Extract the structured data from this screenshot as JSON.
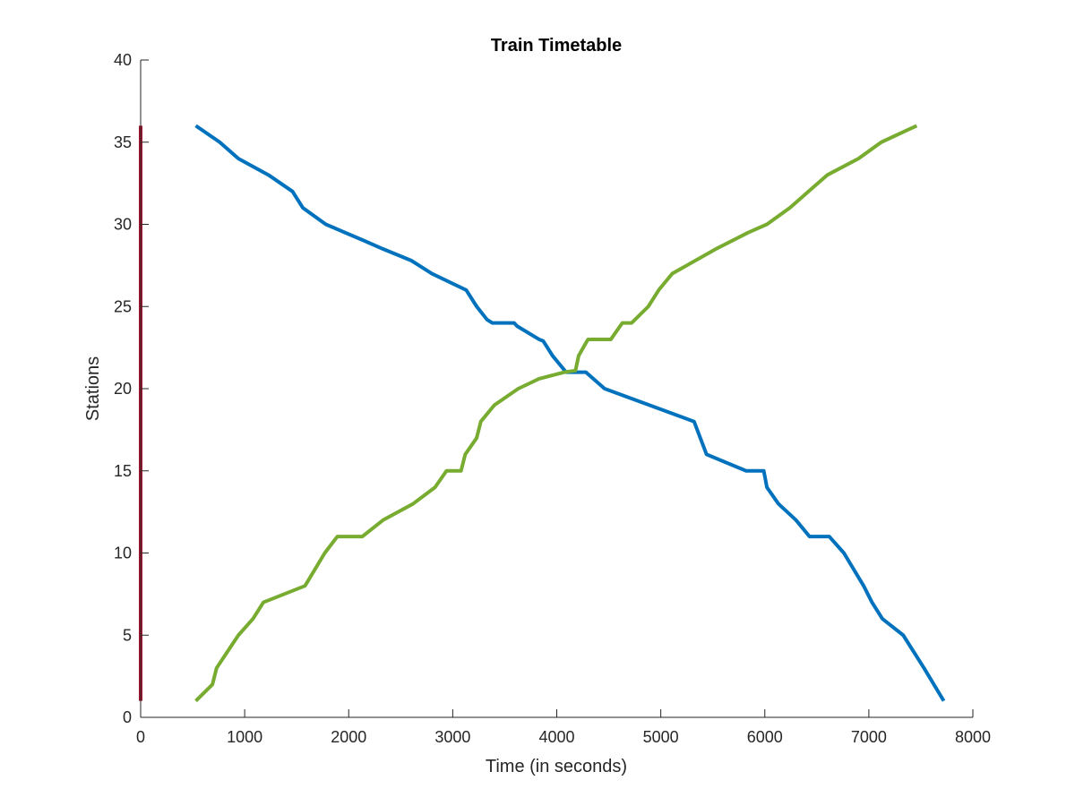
{
  "chart_data": {
    "type": "line",
    "title": "Train Timetable",
    "xlabel": "Time (in seconds)",
    "ylabel": "Stations",
    "xlim": [
      0,
      8000
    ],
    "ylim": [
      0,
      40
    ],
    "xticks": [
      "0",
      "1000",
      "2000",
      "3000",
      "4000",
      "5000",
      "6000",
      "7000",
      "8000"
    ],
    "yticks": [
      "0",
      "5",
      "10",
      "15",
      "20",
      "25",
      "30",
      "35",
      "40"
    ],
    "grid": false,
    "legend": "none",
    "series": [
      {
        "color": "#0072BD",
        "x": [
          530,
          760,
          940,
          1230,
          1460,
          1560,
          1780,
          2150,
          2330,
          2600,
          2800,
          3130,
          3230,
          3330,
          3380,
          3590,
          3620,
          3830,
          3870,
          3960,
          4090,
          4280,
          4460,
          5320,
          5380,
          5440,
          5820,
          5990,
          6020,
          6130,
          6300,
          6430,
          6520,
          6620,
          6760,
          6950,
          7030,
          7130,
          7330,
          7430,
          7530,
          7720
        ],
        "y": [
          36,
          35,
          34,
          33,
          32,
          31,
          30,
          29,
          28.5,
          27.8,
          27,
          26,
          25,
          24.2,
          24,
          24,
          23.8,
          23,
          22.9,
          22,
          21,
          21,
          20,
          18,
          17,
          16,
          15,
          15,
          14,
          13,
          12,
          11,
          11,
          11,
          10,
          8,
          7,
          6,
          5,
          4,
          3,
          1
        ]
      },
      {
        "color": "#77AC30",
        "x": [
          530,
          690,
          730,
          940,
          1080,
          1180,
          1580,
          1770,
          1890,
          2130,
          2330,
          2620,
          2830,
          2940,
          3080,
          3120,
          3230,
          3270,
          3400,
          3630,
          3830,
          4070,
          4180,
          4210,
          4300,
          4520,
          4630,
          4720,
          4880,
          4980,
          5110,
          5530,
          5840,
          6020,
          6240,
          6420,
          6600,
          6900,
          7120,
          7460
        ],
        "y": [
          1,
          2,
          3,
          5,
          6,
          7,
          8,
          10,
          11,
          11,
          12,
          13,
          14,
          15,
          15,
          16,
          17,
          18,
          19,
          20,
          20.6,
          21,
          21.1,
          22,
          23,
          23,
          24,
          24,
          25,
          26,
          27,
          28.5,
          29.5,
          30,
          31,
          32,
          33,
          34,
          35,
          36
        ]
      },
      {
        "color": "#A2142F",
        "x": [
          0,
          0
        ],
        "y": [
          1,
          36
        ]
      }
    ]
  }
}
